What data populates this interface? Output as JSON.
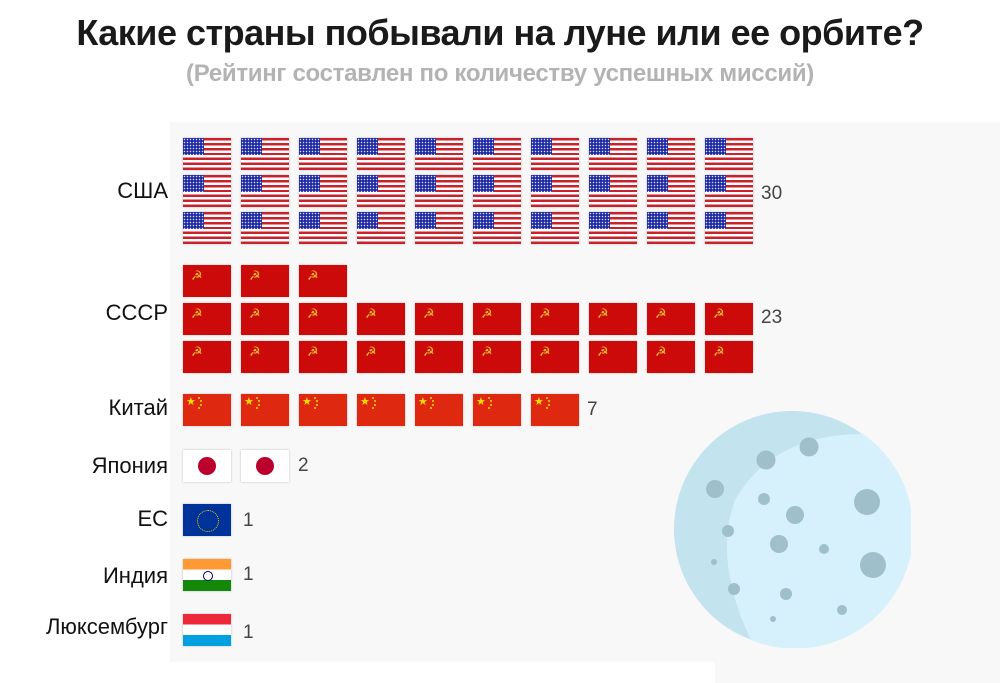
{
  "header": {
    "title": "Какие страны побывали на луне или ее орбите?",
    "subtitle": "(Рейтинг составлен по количеству успешных миссий)"
  },
  "rows": [
    {
      "label": "США",
      "count": "30",
      "flag": "usa-flag-icon"
    },
    {
      "label": "СССР",
      "count": "23",
      "flag": "ussr-flag-icon"
    },
    {
      "label": "Китай",
      "count": "7",
      "flag": "china-flag-icon"
    },
    {
      "label": "Япония",
      "count": "2",
      "flag": "japan-flag-icon"
    },
    {
      "label": "ЕС",
      "count": "1",
      "flag": "eu-flag-icon"
    },
    {
      "label": "Индия",
      "count": "1",
      "flag": "india-flag-icon"
    },
    {
      "label": "Люксембург",
      "count": "1",
      "flag": "luxembourg-flag-icon"
    }
  ],
  "decoration": {
    "moon": "moon-icon"
  },
  "colors": {
    "title": "#1a1a1a",
    "subtitle": "#b3b3b3",
    "panel_bg": "#f8f8f8",
    "moon_light": "#d6f1fb",
    "moon_shadow": "#c3e3ee",
    "crater": "#9fbfcb"
  },
  "chart_data": {
    "type": "bar",
    "title": "Какие страны побывали на луне или ее орбите?",
    "subtitle": "(Рейтинг составлен по количеству успешных миссий)",
    "categories": [
      "США",
      "СССР",
      "Китай",
      "Япония",
      "ЕС",
      "Индия",
      "Люксембург"
    ],
    "values": [
      30,
      23,
      7,
      2,
      1,
      1,
      1
    ],
    "orientation": "horizontal",
    "style": "pictogram (one flag per mission, up to 10 per row)",
    "xlabel": "",
    "ylabel": "",
    "grid": false,
    "legend": null
  }
}
